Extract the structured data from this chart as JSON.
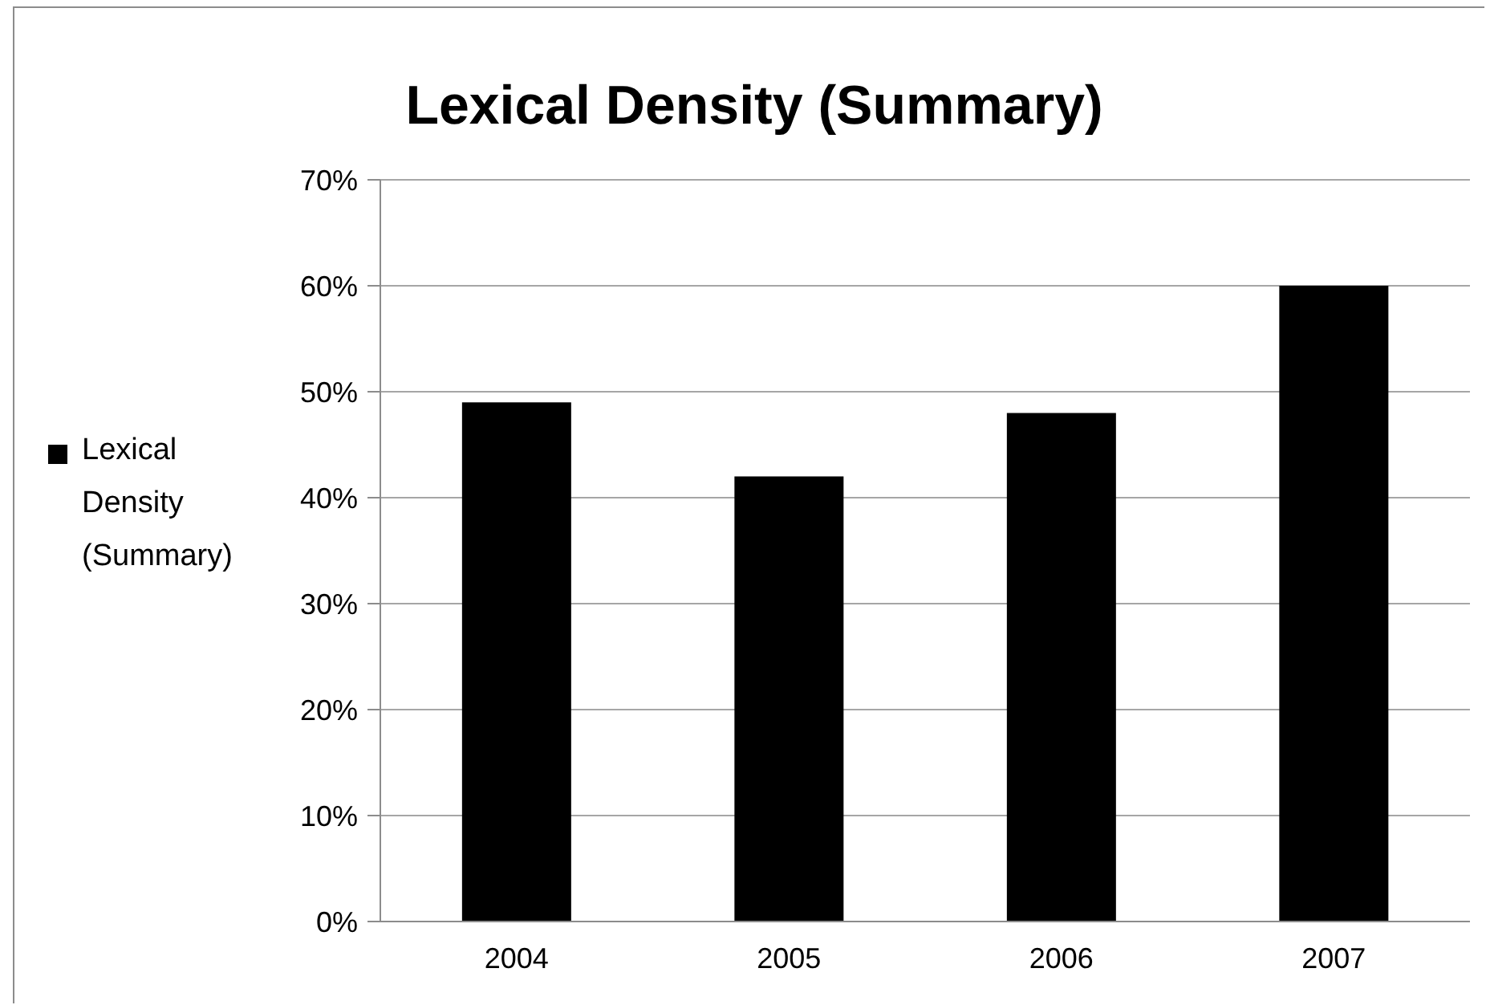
{
  "chart_data": {
    "type": "bar",
    "title": "Lexical Density (Summary)",
    "categories": [
      "2004",
      "2005",
      "2006",
      "2007"
    ],
    "series": [
      {
        "name": "Lexical Density (Summary)",
        "color": "#000000",
        "values": [
          49,
          42,
          48,
          60
        ]
      }
    ],
    "ylim": [
      0,
      70
    ],
    "yticks": [
      {
        "value": 0,
        "label": "0%"
      },
      {
        "value": 10,
        "label": "10%"
      },
      {
        "value": 20,
        "label": "20%"
      },
      {
        "value": 30,
        "label": "30%"
      },
      {
        "value": 40,
        "label": "40%"
      },
      {
        "value": 50,
        "label": "50%"
      },
      {
        "value": 60,
        "label": "60%"
      },
      {
        "value": 70,
        "label": "70%"
      }
    ],
    "grid": "y",
    "legend": "left"
  }
}
